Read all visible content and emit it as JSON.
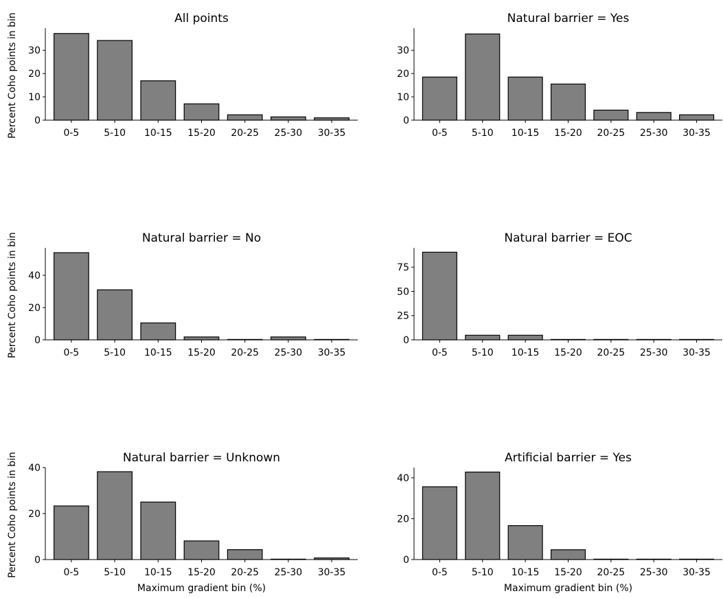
{
  "figure": {
    "ylabel": "Percent Coho points in bin",
    "xlabel": "Maximum gradient bin (%)"
  },
  "colors": {
    "bar_fill": "#808080",
    "bar_edge": "#000000",
    "axis": "#000000"
  },
  "chart_data": [
    {
      "type": "bar",
      "title": "All points",
      "categories": [
        "0-5",
        "5-10",
        "10-15",
        "15-20",
        "20-25",
        "25-30",
        "30-35"
      ],
      "values": [
        37.2,
        34.2,
        16.9,
        7.0,
        2.3,
        1.4,
        1.0
      ],
      "ylim": [
        0,
        39.5
      ],
      "yticks": [
        0,
        10,
        20,
        30
      ],
      "ylabel": "Percent Coho points in bin",
      "xlabel": "",
      "grid": false,
      "legend": "none"
    },
    {
      "type": "bar",
      "title": "Natural barrier = Yes",
      "categories": [
        "0-5",
        "5-10",
        "10-15",
        "15-20",
        "20-25",
        "25-30",
        "30-35"
      ],
      "values": [
        18.5,
        37.0,
        18.5,
        15.5,
        4.3,
        3.3,
        2.3
      ],
      "ylim": [
        0,
        39.5
      ],
      "yticks": [
        0,
        10,
        20,
        30
      ],
      "ylabel": "",
      "xlabel": "",
      "grid": false,
      "legend": "none"
    },
    {
      "type": "bar",
      "title": "Natural barrier = No",
      "categories": [
        "0-5",
        "5-10",
        "10-15",
        "15-20",
        "20-25",
        "25-30",
        "30-35"
      ],
      "values": [
        54.0,
        31.0,
        10.5,
        1.8,
        0,
        1.8,
        0
      ],
      "ylim": [
        0,
        57
      ],
      "yticks": [
        0,
        20,
        40
      ],
      "ylabel": "Percent Coho points in bin",
      "xlabel": "",
      "grid": false,
      "legend": "none"
    },
    {
      "type": "bar",
      "title": "Natural barrier = EOC",
      "categories": [
        "0-5",
        "5-10",
        "10-15",
        "15-20",
        "20-25",
        "25-30",
        "30-35"
      ],
      "values": [
        90.5,
        4.75,
        4.75,
        0,
        0,
        0,
        0
      ],
      "ylim": [
        0,
        95
      ],
      "yticks": [
        0,
        25,
        50,
        75
      ],
      "ylabel": "",
      "xlabel": "",
      "grid": false,
      "legend": "none"
    },
    {
      "type": "bar",
      "title": "Natural barrier = Unknown",
      "categories": [
        "0-5",
        "5-10",
        "10-15",
        "15-20",
        "20-25",
        "25-30",
        "30-35"
      ],
      "values": [
        23.3,
        38.2,
        25.0,
        8.1,
        4.3,
        0,
        0.7
      ],
      "ylim": [
        0,
        40
      ],
      "yticks": [
        0,
        20,
        40
      ],
      "ylabel": "Percent Coho points in bin",
      "xlabel": "Maximum gradient bin (%)",
      "grid": false,
      "legend": "none"
    },
    {
      "type": "bar",
      "title": "Artificial barrier = Yes",
      "categories": [
        "0-5",
        "5-10",
        "10-15",
        "15-20",
        "20-25",
        "25-30",
        "30-35"
      ],
      "values": [
        35.6,
        42.8,
        16.6,
        4.8,
        0,
        0,
        0
      ],
      "ylim": [
        0,
        45
      ],
      "yticks": [
        0,
        20,
        40
      ],
      "ylabel": "",
      "xlabel": "Maximum gradient bin (%)",
      "grid": false,
      "legend": "none"
    }
  ]
}
